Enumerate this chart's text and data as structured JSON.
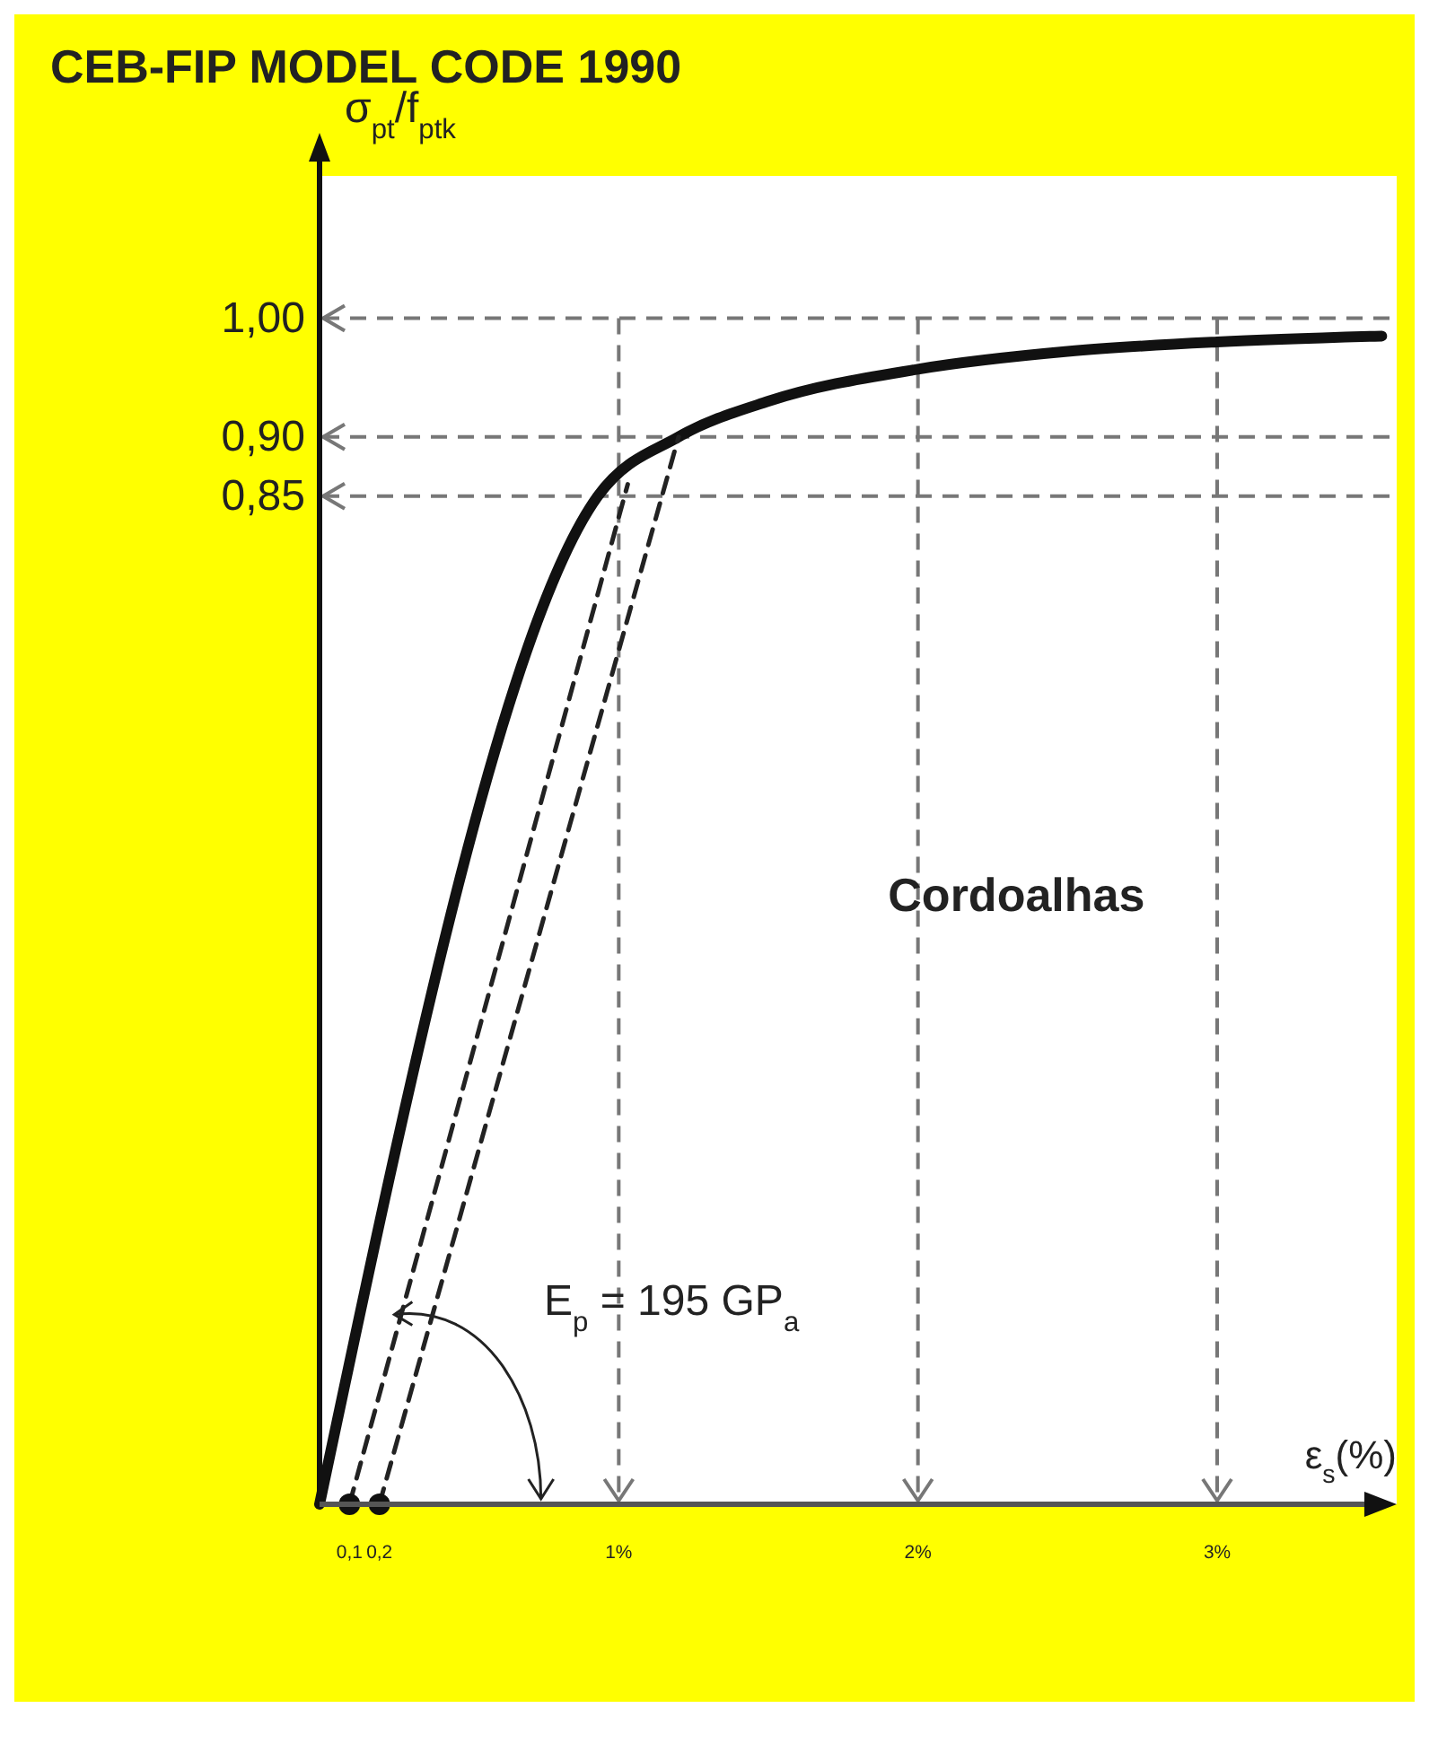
{
  "chart_data": {
    "type": "line",
    "title": "CEB-FIP MODEL CODE 1990",
    "xlabel": "ε$_{s}$(%)",
    "ylabel": "σ$_{pt}$/f$_{ptk}$",
    "xlim": [
      0,
      3.6
    ],
    "ylim": [
      0,
      1.12
    ],
    "xticks": [
      {
        "value": 0.1,
        "label": "0,1"
      },
      {
        "value": 0.2,
        "label": "0,2"
      },
      {
        "value": 1,
        "label": "1%"
      },
      {
        "value": 2,
        "label": "2%"
      },
      {
        "value": 3,
        "label": "3%"
      }
    ],
    "yticks": [
      {
        "value": 0.85,
        "label": "0,85"
      },
      {
        "value": 0.9,
        "label": "0,90"
      },
      {
        "value": 1,
        "label": "1,00"
      }
    ],
    "grid": false,
    "marker": "none",
    "line_style": "solid",
    "series": [
      {
        "color": "#111111",
        "x": [
          0,
          0.93,
          1.2,
          1.5,
          2,
          2.5,
          3,
          3.55
        ],
        "values": [
          0,
          0.85,
          0.9,
          0.93,
          0.957,
          0.972,
          0.98,
          0.985
        ]
      },
      {
        "color": "#222222",
        "line_style": "dashed",
        "x": [
          0.1,
          1.03
        ],
        "values": [
          0,
          0.86
        ]
      },
      {
        "color": "#222222",
        "line_style": "dashed",
        "x": [
          0.2,
          1.2
        ],
        "values": [
          0,
          0.9
        ]
      },
      {
        "type": "scatter",
        "marker": "circle",
        "color": "#111111",
        "x": [
          0.1,
          0.2
        ],
        "values": [
          0,
          0
        ]
      }
    ],
    "ref_lines": [
      {
        "axis": "y",
        "value": 1,
        "color": "#777777",
        "line_style": "dashed"
      },
      {
        "axis": "y",
        "value": 0.9,
        "color": "#777777",
        "line_style": "dashed"
      },
      {
        "axis": "y",
        "value": 0.85,
        "color": "#777777",
        "line_style": "dashed"
      },
      {
        "axis": "x",
        "value": 1,
        "color": "#777777",
        "line_style": "dashed"
      },
      {
        "axis": "x",
        "value": 2,
        "color": "#777777",
        "line_style": "dashed"
      },
      {
        "axis": "x",
        "value": 3,
        "color": "#777777",
        "line_style": "dashed"
      }
    ],
    "annotations": [
      "Cordoalhas",
      "E$_{p}$ = 195 GP$_{a}$"
    ]
  }
}
